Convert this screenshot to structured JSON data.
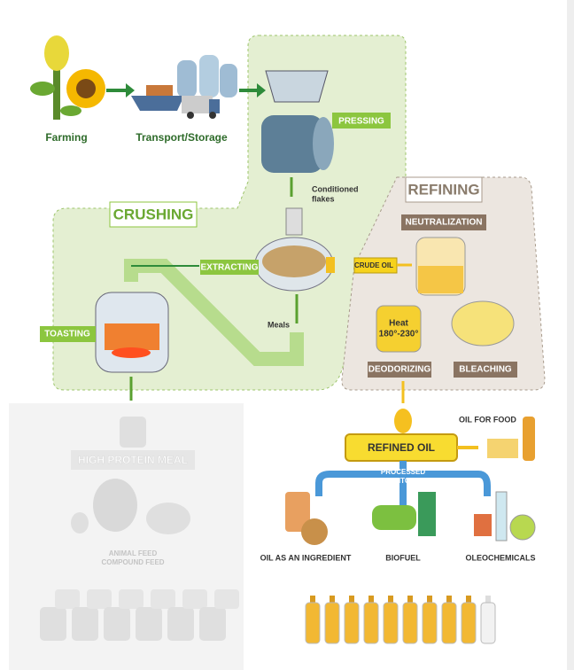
{
  "flow": {
    "farming": "Farming",
    "transport": "Transport/Storage",
    "pressing": "PRESSING",
    "flakes": [
      "Conditioned",
      "flakes"
    ],
    "crushing": "CRUSHING",
    "refining": "REFINING",
    "neutralization": "NEUTRALIZATION",
    "extracting": "EXTRACTING",
    "crude_oil": "CRUDE OIL",
    "meals": "Meals",
    "toasting": "TOASTING",
    "heat": [
      "Heat",
      "180°-230°"
    ],
    "deodorizing": "DEODORIZING",
    "bleaching": "BLEACHING",
    "refined_oil": "REFINED OIL",
    "oil_for_food": "OIL FOR FOOD",
    "processed_into": [
      "PROCESSED",
      "INTO:"
    ],
    "high_protein_meal": "HIGH PROTEIN MEAL",
    "animal_feed": [
      "ANIMAL FEED",
      "COMPOUND FEED"
    ],
    "oil_ingredient": "OIL AS AN INGREDIENT",
    "biofuel": "BIOFUEL",
    "oleochemicals": "OLEOCHEMICALS"
  }
}
